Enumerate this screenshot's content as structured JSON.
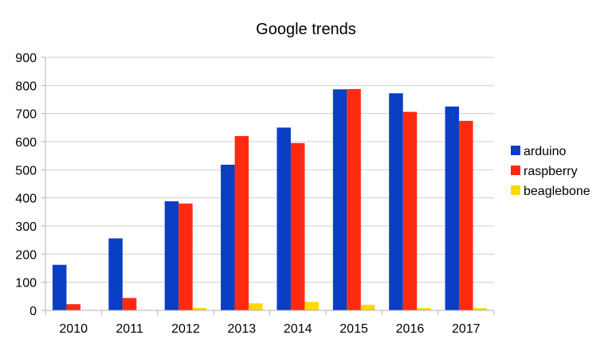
{
  "chart_data": {
    "type": "bar",
    "title": "Google trends",
    "xlabel": "",
    "ylabel": "",
    "categories": [
      "2010",
      "2011",
      "2012",
      "2013",
      "2014",
      "2015",
      "2016",
      "2017"
    ],
    "series": [
      {
        "name": "arduino",
        "color": "#0a3ec4",
        "values": [
          162,
          256,
          388,
          518,
          650,
          786,
          772,
          725
        ]
      },
      {
        "name": "raspberry",
        "color": "#ff2a10",
        "values": [
          22,
          44,
          380,
          620,
          595,
          787,
          706,
          674
        ]
      },
      {
        "name": "beaglebone",
        "color": "#ffd800",
        "values": [
          0,
          0,
          9,
          25,
          30,
          20,
          8,
          8
        ]
      }
    ],
    "ylim": [
      0,
      900
    ],
    "yticks": [
      0,
      100,
      200,
      300,
      400,
      500,
      600,
      700,
      800,
      900
    ],
    "grid": true,
    "legend_position": "right"
  }
}
